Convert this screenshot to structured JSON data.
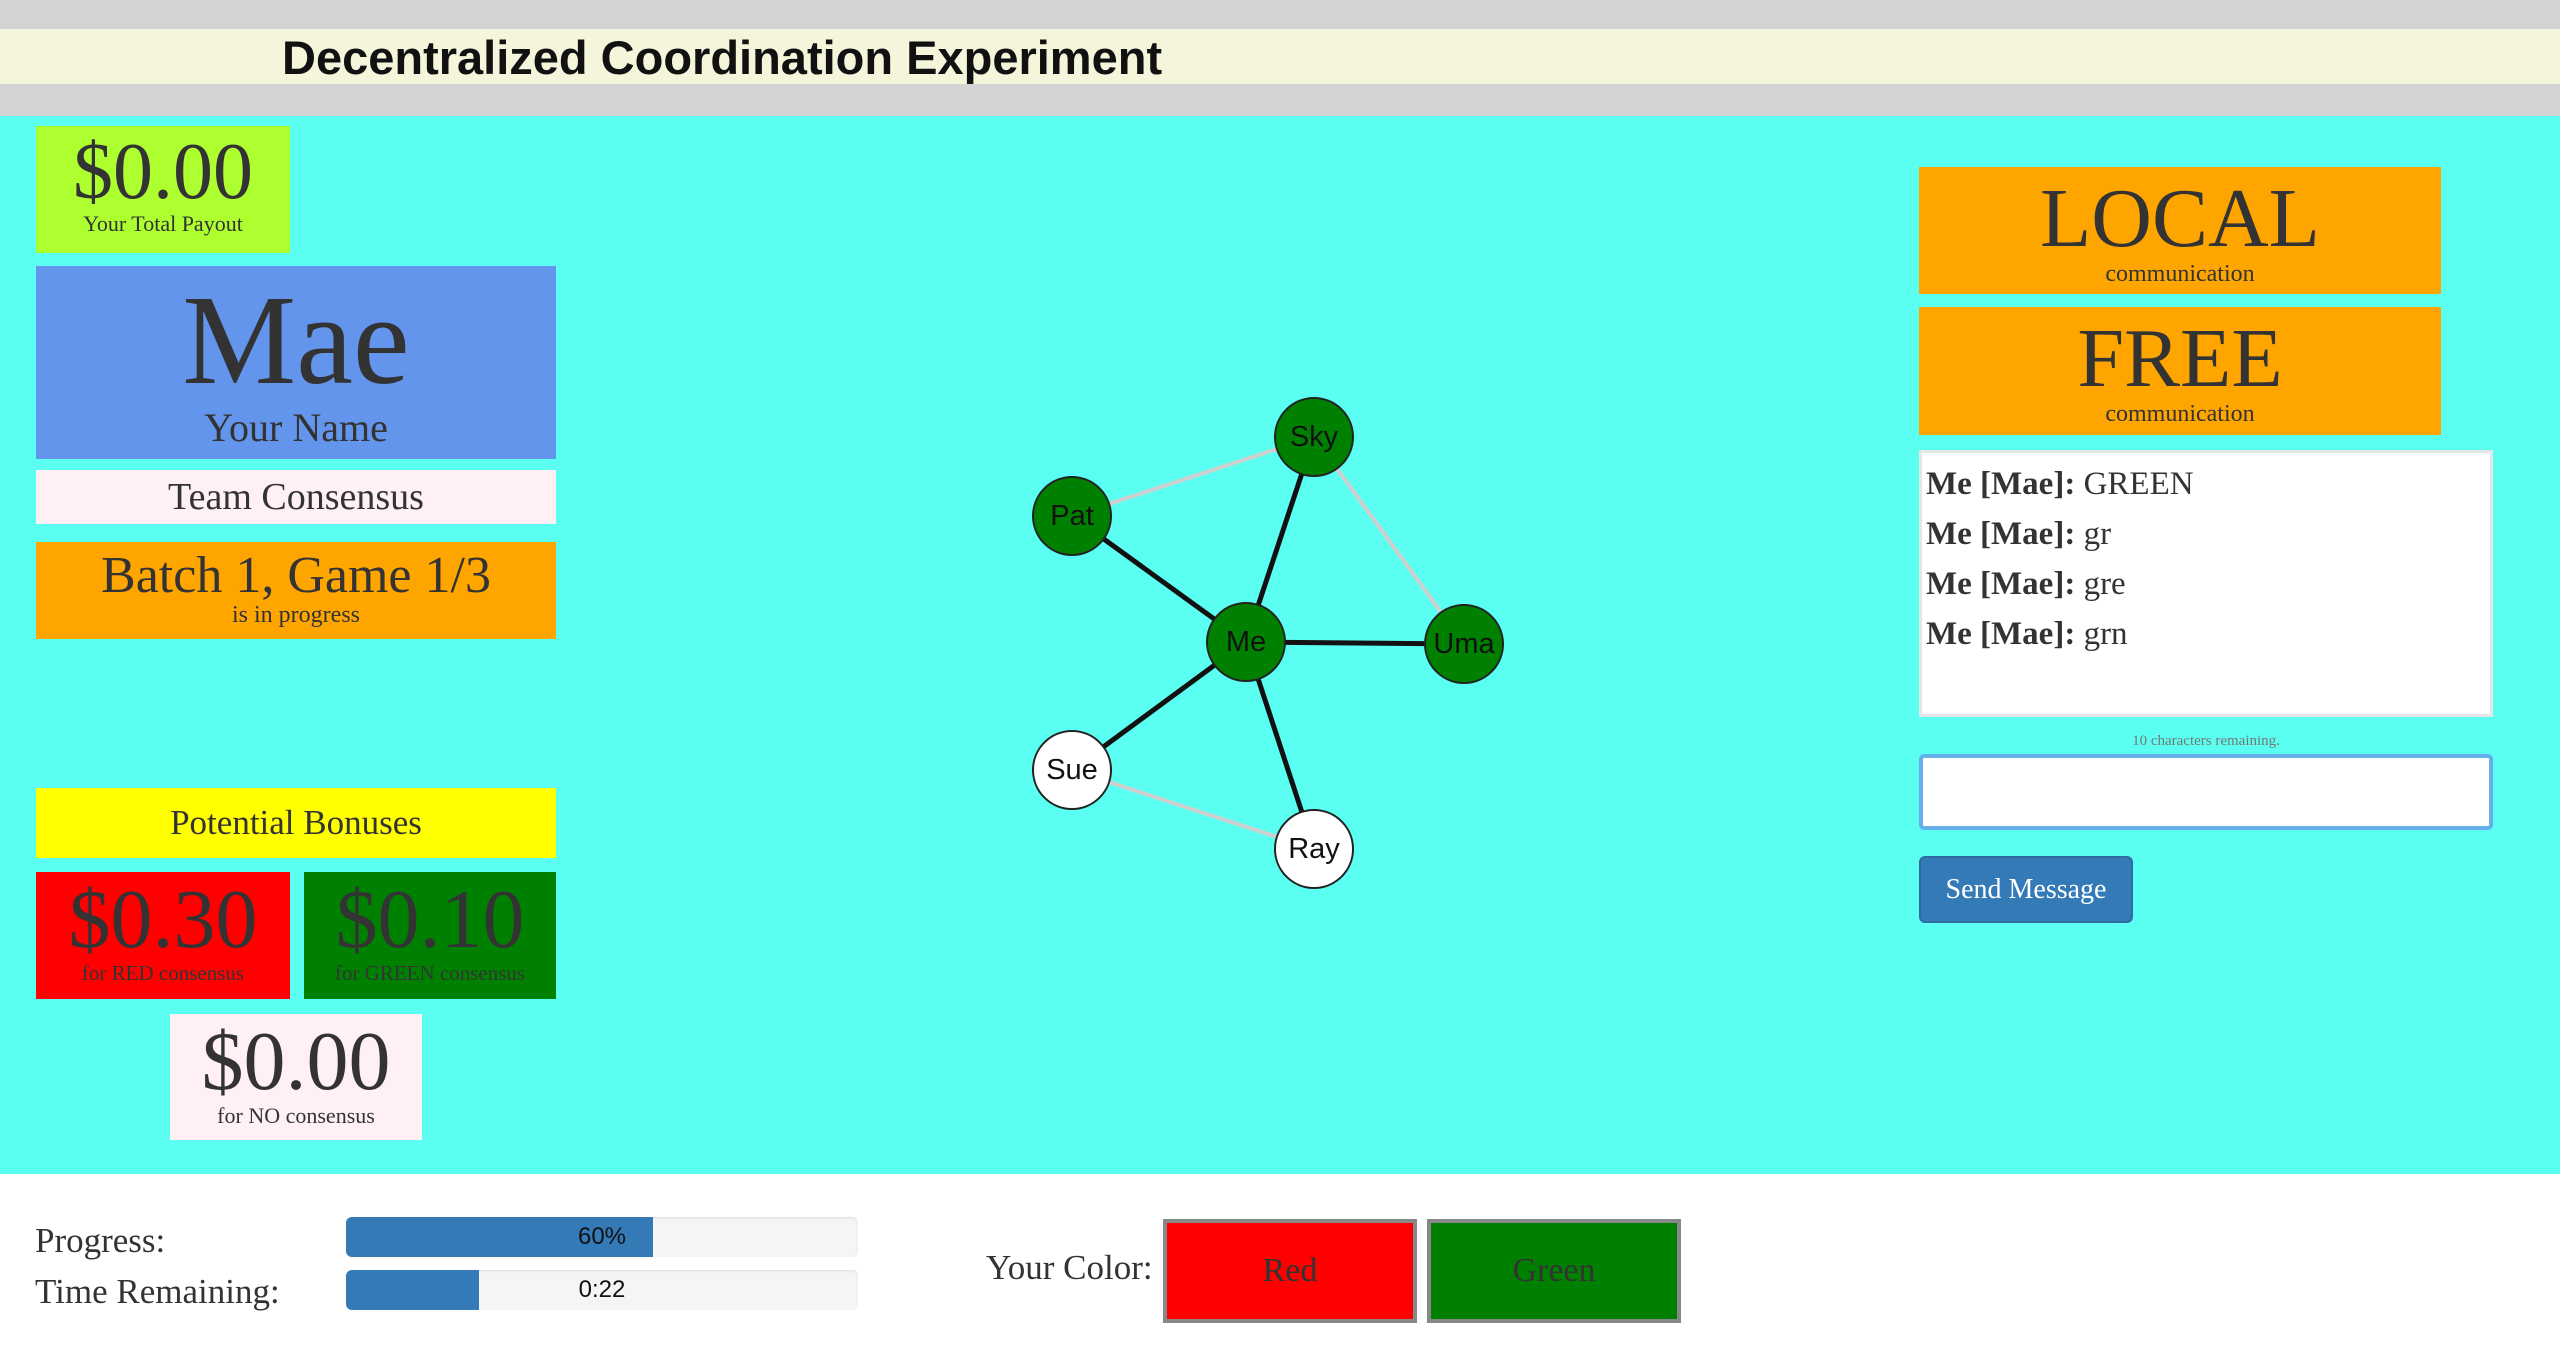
{
  "header": {
    "title": "Decentralized Coordination Experiment"
  },
  "payout": {
    "amount": "$0.00",
    "label": "Your Total Payout"
  },
  "name_box": {
    "name": "Mae",
    "label": "Your Name"
  },
  "consensus": {
    "label": "Team Consensus"
  },
  "batch": {
    "title": "Batch 1, Game 1/3",
    "status": "is in progress"
  },
  "bonuses": {
    "header": "Potential Bonuses",
    "red": {
      "amount": "$0.30",
      "label": "for RED consensus"
    },
    "green": {
      "amount": "$0.10",
      "label": "for GREEN consensus"
    },
    "none": {
      "amount": "$0.00",
      "label": "for NO consensus"
    }
  },
  "comm": {
    "scope": {
      "title": "LOCAL",
      "label": "communication"
    },
    "mode": {
      "title": "FREE",
      "label": "communication"
    }
  },
  "chat": {
    "messages": [
      {
        "sender": "Me [Mae]:",
        "text": "GREEN"
      },
      {
        "sender": "Me [Mae]:",
        "text": "gr"
      },
      {
        "sender": "Me [Mae]:",
        "text": "gre"
      },
      {
        "sender": "Me [Mae]:",
        "text": "grn"
      }
    ],
    "chars_remaining": "10 characters remaining.",
    "input_value": "",
    "send_label": "Send Message"
  },
  "network": {
    "nodes": [
      {
        "id": "Sky",
        "color": "#008000"
      },
      {
        "id": "Pat",
        "color": "#008000"
      },
      {
        "id": "Me",
        "color": "#008000"
      },
      {
        "id": "Uma",
        "color": "#008000"
      },
      {
        "id": "Sue",
        "color": "#ffffff"
      },
      {
        "id": "Ray",
        "color": "#ffffff"
      }
    ],
    "edges": [
      {
        "from": "Me",
        "to": "Pat",
        "style": "strong"
      },
      {
        "from": "Me",
        "to": "Sky",
        "style": "strong"
      },
      {
        "from": "Me",
        "to": "Uma",
        "style": "strong"
      },
      {
        "from": "Me",
        "to": "Sue",
        "style": "strong"
      },
      {
        "from": "Me",
        "to": "Ray",
        "style": "strong"
      },
      {
        "from": "Pat",
        "to": "Sky",
        "style": "faint"
      },
      {
        "from": "Sky",
        "to": "Uma",
        "style": "faint"
      },
      {
        "from": "Sue",
        "to": "Ray",
        "style": "faint"
      }
    ]
  },
  "footer": {
    "progress_label": "Progress:",
    "progress_value": 60,
    "progress_text": "60%",
    "time_label": "Time Remaining:",
    "time_fraction": 0.26,
    "time_text": "0:22",
    "color_label": "Your Color:",
    "red_label": "Red",
    "green_label": "Green"
  },
  "colors": {
    "background": "#5bfff2",
    "payout": "#adff2f",
    "name": "#6495ed",
    "consensus": "#fff0f5",
    "batch": "#ffa500",
    "bonus_header": "#ffff00",
    "red": "#ff0000",
    "green": "#008000",
    "comm": "#ffa500",
    "button": "#337ab7"
  }
}
